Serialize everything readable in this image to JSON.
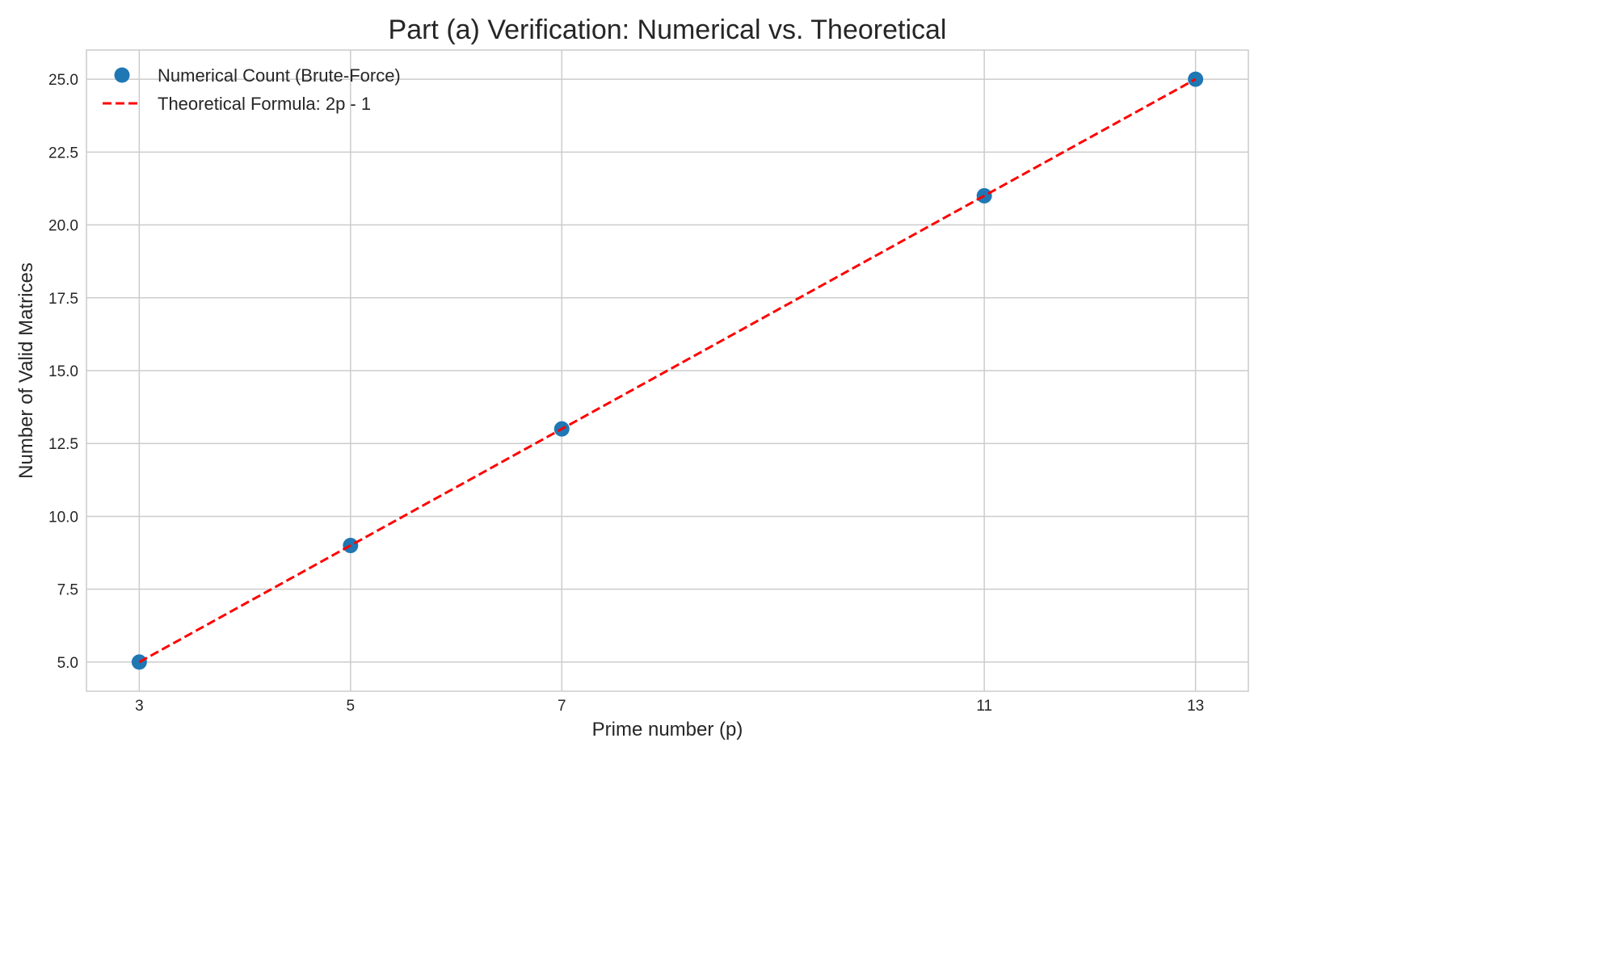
{
  "chart_data": {
    "type": "scatter",
    "title": "Part (a) Verification: Numerical vs. Theoretical",
    "xlabel": "Prime number (p)",
    "ylabel": "Number of Valid Matrices",
    "x": [
      3,
      5,
      7,
      11,
      13
    ],
    "xticks": [
      "3",
      "5",
      "7",
      "11",
      "13"
    ],
    "yticks": [
      "5.0",
      "7.5",
      "10.0",
      "12.5",
      "15.0",
      "17.5",
      "20.0",
      "22.5",
      "25.0"
    ],
    "ytick_values": [
      5.0,
      7.5,
      10.0,
      12.5,
      15.0,
      17.5,
      20.0,
      22.5,
      25.0
    ],
    "xlim": [
      2.5,
      13.5
    ],
    "ylim": [
      4.0,
      26.0
    ],
    "grid": true,
    "legend_position": "top-left",
    "series": [
      {
        "name": "Numerical Count (Brute-Force)",
        "kind": "scatter",
        "color": "#1f77b4",
        "values": [
          5,
          9,
          13,
          21,
          25
        ]
      },
      {
        "name": "Theoretical Formula: 2p - 1",
        "kind": "line",
        "style": "dashed",
        "color": "#ff0000",
        "values": [
          5,
          9,
          13,
          21,
          25
        ]
      }
    ]
  }
}
